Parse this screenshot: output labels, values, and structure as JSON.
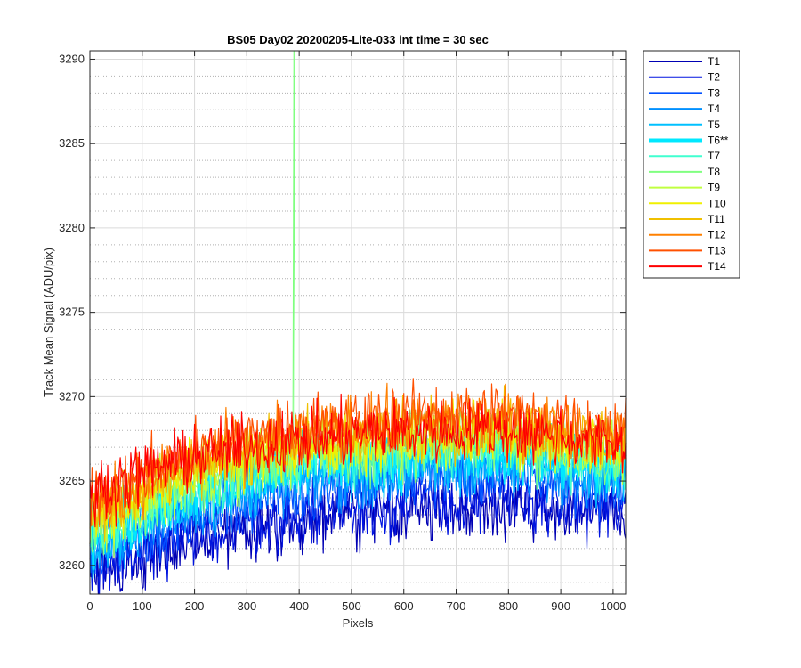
{
  "chart_data": {
    "type": "line",
    "title": "BS05 Day02 20200205-Lite-033 int time = 30 sec",
    "xlabel": "Pixels",
    "ylabel": "Track Mean Signal (ADU/pix)",
    "xlim": [
      0,
      1024
    ],
    "ylim": [
      3258.3,
      3290.5
    ],
    "x_ticks": [
      0,
      100,
      200,
      300,
      400,
      500,
      600,
      700,
      800,
      900,
      1000
    ],
    "y_ticks": [
      3260,
      3265,
      3270,
      3275,
      3280,
      3285,
      3290
    ],
    "grid": true,
    "legend_location": "outside-right",
    "x": {
      "start": 0,
      "end": 1024,
      "step": 2
    },
    "noise_amplitude": 1.3,
    "series": [
      {
        "name": "T1",
        "color": "#0000b4",
        "highlight": false,
        "trend": [
          [
            0,
            3259.6
          ],
          [
            100,
            3260.4
          ],
          [
            200,
            3261.6
          ],
          [
            300,
            3262.2
          ],
          [
            400,
            3262.6
          ],
          [
            500,
            3263.0
          ],
          [
            600,
            3263.3
          ],
          [
            700,
            3263.4
          ],
          [
            800,
            3263.6
          ],
          [
            900,
            3263.3
          ],
          [
            1024,
            3262.9
          ]
        ]
      },
      {
        "name": "T2",
        "color": "#0014e0",
        "highlight": false,
        "trend": [
          [
            0,
            3259.8
          ],
          [
            100,
            3260.6
          ],
          [
            200,
            3261.8
          ],
          [
            300,
            3262.5
          ],
          [
            400,
            3262.9
          ],
          [
            500,
            3263.3
          ],
          [
            600,
            3263.6
          ],
          [
            700,
            3263.7
          ],
          [
            800,
            3263.9
          ],
          [
            900,
            3263.6
          ],
          [
            1024,
            3263.2
          ]
        ]
      },
      {
        "name": "T3",
        "color": "#0050ff",
        "highlight": false,
        "trend": [
          [
            0,
            3260.5
          ],
          [
            100,
            3261.8
          ],
          [
            200,
            3263.0
          ],
          [
            300,
            3263.8
          ],
          [
            400,
            3264.3
          ],
          [
            500,
            3264.8
          ],
          [
            600,
            3265.1
          ],
          [
            700,
            3265.3
          ],
          [
            800,
            3265.4
          ],
          [
            900,
            3265.0
          ],
          [
            1024,
            3264.5
          ]
        ]
      },
      {
        "name": "T4",
        "color": "#0090ff",
        "highlight": false,
        "trend": [
          [
            0,
            3260.9
          ],
          [
            100,
            3262.3
          ],
          [
            200,
            3263.5
          ],
          [
            300,
            3264.3
          ],
          [
            400,
            3264.9
          ],
          [
            500,
            3265.3
          ],
          [
            600,
            3265.6
          ],
          [
            700,
            3265.8
          ],
          [
            800,
            3265.9
          ],
          [
            900,
            3265.5
          ],
          [
            1024,
            3265.0
          ]
        ]
      },
      {
        "name": "T5",
        "color": "#00c0ff",
        "highlight": false,
        "trend": [
          [
            0,
            3261.2
          ],
          [
            100,
            3262.6
          ],
          [
            200,
            3263.9
          ],
          [
            300,
            3264.7
          ],
          [
            400,
            3265.3
          ],
          [
            500,
            3265.7
          ],
          [
            600,
            3266.0
          ],
          [
            700,
            3266.2
          ],
          [
            800,
            3266.3
          ],
          [
            900,
            3265.9
          ],
          [
            1024,
            3265.3
          ]
        ]
      },
      {
        "name": "T6**",
        "color": "#00e8ff",
        "highlight": true,
        "trend": [
          [
            0,
            3261.6
          ],
          [
            100,
            3263.0
          ],
          [
            200,
            3264.4
          ],
          [
            300,
            3265.2
          ],
          [
            400,
            3265.8
          ],
          [
            500,
            3266.2
          ],
          [
            600,
            3266.5
          ],
          [
            700,
            3266.7
          ],
          [
            800,
            3266.7
          ],
          [
            900,
            3266.3
          ],
          [
            1024,
            3265.7
          ]
        ]
      },
      {
        "name": "T7",
        "color": "#40ffd0",
        "highlight": false,
        "trend": [
          [
            0,
            3261.9
          ],
          [
            100,
            3263.3
          ],
          [
            200,
            3264.7
          ],
          [
            300,
            3265.5
          ],
          [
            400,
            3266.1
          ],
          [
            500,
            3266.5
          ],
          [
            600,
            3266.8
          ],
          [
            700,
            3267.0
          ],
          [
            800,
            3267.0
          ],
          [
            900,
            3266.6
          ],
          [
            1024,
            3266.0
          ]
        ]
      },
      {
        "name": "T8",
        "color": "#80ff80",
        "highlight": false,
        "trend": [
          [
            0,
            3262.1
          ],
          [
            100,
            3263.6
          ],
          [
            200,
            3265.0
          ],
          [
            300,
            3265.8
          ],
          [
            400,
            3266.4
          ],
          [
            500,
            3266.8
          ],
          [
            600,
            3267.1
          ],
          [
            700,
            3267.3
          ],
          [
            800,
            3267.3
          ],
          [
            900,
            3266.9
          ],
          [
            1024,
            3266.3
          ]
        ],
        "spike": {
          "x": 390,
          "y": 3290.5
        }
      },
      {
        "name": "T9",
        "color": "#c0ff40",
        "highlight": false,
        "trend": [
          [
            0,
            3262.4
          ],
          [
            100,
            3263.9
          ],
          [
            200,
            3265.3
          ],
          [
            300,
            3266.1
          ],
          [
            400,
            3266.7
          ],
          [
            500,
            3267.1
          ],
          [
            600,
            3267.4
          ],
          [
            700,
            3267.6
          ],
          [
            800,
            3267.6
          ],
          [
            900,
            3267.2
          ],
          [
            1024,
            3266.6
          ]
        ]
      },
      {
        "name": "T10",
        "color": "#f0f000",
        "highlight": false,
        "trend": [
          [
            0,
            3262.7
          ],
          [
            100,
            3264.2
          ],
          [
            200,
            3265.6
          ],
          [
            300,
            3266.4
          ],
          [
            400,
            3267.0
          ],
          [
            500,
            3267.4
          ],
          [
            600,
            3267.7
          ],
          [
            700,
            3267.9
          ],
          [
            800,
            3267.9
          ],
          [
            900,
            3267.5
          ],
          [
            1024,
            3266.9
          ]
        ]
      },
      {
        "name": "T11",
        "color": "#f0c000",
        "highlight": false,
        "trend": [
          [
            0,
            3263.0
          ],
          [
            100,
            3264.5
          ],
          [
            200,
            3265.9
          ],
          [
            300,
            3266.7
          ],
          [
            400,
            3267.3
          ],
          [
            500,
            3267.7
          ],
          [
            600,
            3268.0
          ],
          [
            700,
            3268.2
          ],
          [
            800,
            3268.2
          ],
          [
            900,
            3267.8
          ],
          [
            1024,
            3267.2
          ]
        ]
      },
      {
        "name": "T12",
        "color": "#ff8000",
        "highlight": false,
        "trend": [
          [
            0,
            3263.4
          ],
          [
            100,
            3264.9
          ],
          [
            200,
            3266.3
          ],
          [
            300,
            3267.1
          ],
          [
            400,
            3267.7
          ],
          [
            500,
            3268.1
          ],
          [
            600,
            3268.4
          ],
          [
            700,
            3268.6
          ],
          [
            800,
            3268.6
          ],
          [
            900,
            3268.2
          ],
          [
            1024,
            3267.6
          ]
        ]
      },
      {
        "name": "T13",
        "color": "#ff5000",
        "highlight": false,
        "trend": [
          [
            0,
            3263.8
          ],
          [
            100,
            3265.3
          ],
          [
            200,
            3266.7
          ],
          [
            300,
            3267.5
          ],
          [
            400,
            3268.1
          ],
          [
            500,
            3268.5
          ],
          [
            600,
            3268.8
          ],
          [
            700,
            3269.0
          ],
          [
            800,
            3269.0
          ],
          [
            900,
            3268.6
          ],
          [
            1024,
            3268.0
          ]
        ]
      },
      {
        "name": "T14",
        "color": "#ff0000",
        "highlight": false,
        "trend": [
          [
            0,
            3264.2
          ],
          [
            100,
            3265.5
          ],
          [
            200,
            3266.5
          ],
          [
            300,
            3267.0
          ],
          [
            400,
            3267.4
          ],
          [
            500,
            3267.7
          ],
          [
            600,
            3267.9
          ],
          [
            700,
            3268.0
          ],
          [
            800,
            3268.0
          ],
          [
            900,
            3267.6
          ],
          [
            1024,
            3267.1
          ]
        ]
      }
    ]
  }
}
